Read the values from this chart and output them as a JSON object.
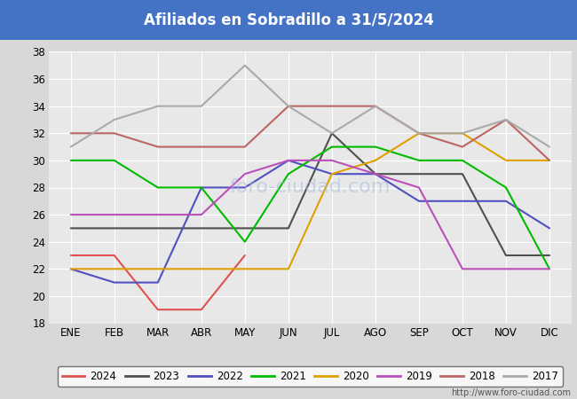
{
  "title": "Afiliados en Sobradillo a 31/5/2024",
  "title_color": "#ffffff",
  "title_bg_color": "#4472c4",
  "months": [
    "ENE",
    "FEB",
    "MAR",
    "ABR",
    "MAY",
    "JUN",
    "JUL",
    "AGO",
    "SEP",
    "OCT",
    "NOV",
    "DIC"
  ],
  "ylim": [
    18,
    38
  ],
  "yticks": [
    18,
    20,
    22,
    24,
    26,
    28,
    30,
    32,
    34,
    36,
    38
  ],
  "bg_color": "#d8d8d8",
  "plot_bg_color": "#e8e8e8",
  "url": "http://www.foro-ciudad.com",
  "series": {
    "2024": {
      "color": "#e05050",
      "data": [
        23,
        23,
        19,
        19,
        23,
        null,
        null,
        null,
        null,
        null,
        null,
        null
      ]
    },
    "2023": {
      "color": "#505050",
      "data": [
        25,
        25,
        25,
        25,
        25,
        25,
        32,
        29,
        29,
        29,
        23,
        23
      ]
    },
    "2022": {
      "color": "#5050c0",
      "data": [
        22,
        21,
        21,
        28,
        28,
        30,
        29,
        29,
        27,
        27,
        27,
        25
      ]
    },
    "2021": {
      "color": "#00bb00",
      "data": [
        30,
        30,
        28,
        28,
        24,
        29,
        31,
        31,
        30,
        30,
        28,
        22
      ]
    },
    "2020": {
      "color": "#e0a000",
      "data": [
        22,
        22,
        22,
        22,
        22,
        22,
        29,
        30,
        32,
        32,
        30,
        30
      ]
    },
    "2019": {
      "color": "#bb50bb",
      "data": [
        26,
        26,
        26,
        26,
        29,
        30,
        30,
        29,
        28,
        22,
        22,
        22
      ]
    },
    "2018": {
      "color": "#bb6666",
      "data": [
        32,
        32,
        31,
        31,
        31,
        34,
        34,
        34,
        32,
        31,
        33,
        30
      ]
    },
    "2017": {
      "color": "#aaaaaa",
      "data": [
        31,
        33,
        34,
        34,
        37,
        34,
        32,
        34,
        32,
        32,
        33,
        31
      ]
    }
  },
  "legend_order": [
    "2024",
    "2023",
    "2022",
    "2021",
    "2020",
    "2019",
    "2018",
    "2017"
  ]
}
